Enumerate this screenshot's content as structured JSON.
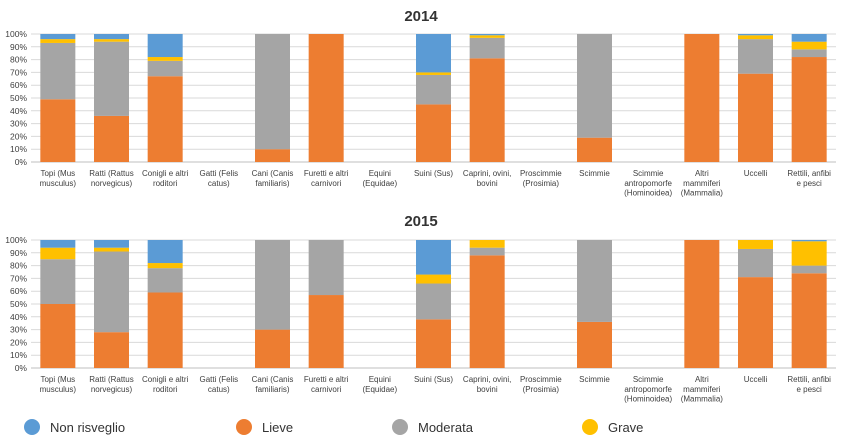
{
  "colors": {
    "non_risveglio": "#5b9bd5",
    "lieve": "#ed7d31",
    "moderata": "#a5a5a5",
    "grave": "#ffc000"
  },
  "legend": [
    {
      "key": "non_risveglio",
      "label": "Non risveglio"
    },
    {
      "key": "lieve",
      "label": "Lieve"
    },
    {
      "key": "moderata",
      "label": "Moderata"
    },
    {
      "key": "grave",
      "label": "Grave"
    }
  ],
  "chart_data": [
    {
      "type": "bar",
      "stacked": "percent",
      "title": "2014",
      "ylim": [
        0,
        100
      ],
      "yticks": [
        "0%",
        "10%",
        "20%",
        "30%",
        "40%",
        "50%",
        "60%",
        "70%",
        "80%",
        "90%",
        "100%"
      ],
      "grid": true,
      "legend_position": "bottom",
      "categories": [
        [
          "Topi (Mus",
          "musculus)"
        ],
        [
          "Ratti (Rattus",
          "norvegicus)"
        ],
        [
          "Conigli e altri",
          "roditori"
        ],
        [
          "Gatti (Felis",
          "catus)"
        ],
        [
          "Cani (Canis",
          "familiaris)"
        ],
        [
          "Furetti e altri",
          "carnivori"
        ],
        [
          "Equini",
          "(Equidae)"
        ],
        [
          "Suini (Sus)"
        ],
        [
          "Caprini, ovini,",
          "bovini"
        ],
        [
          "Proscimmie",
          "(Prosimia)"
        ],
        [
          "Scimmie"
        ],
        [
          "Scimmie",
          "antropomorfe",
          "(Hominoidea)"
        ],
        [
          "Altri",
          "mammiferi",
          "(Mammalia)"
        ],
        [
          "Uccelli"
        ],
        [
          "Rettili, anfibi",
          "e pesci"
        ]
      ],
      "series": [
        {
          "name": "Lieve",
          "key": "lieve",
          "values": [
            49,
            36,
            67,
            0,
            10,
            100,
            0,
            45,
            81,
            0,
            19,
            0,
            100,
            69,
            82
          ]
        },
        {
          "name": "Moderata",
          "key": "moderata",
          "values": [
            44,
            58,
            12,
            0,
            90,
            0,
            0,
            23,
            16,
            0,
            81,
            0,
            0,
            27,
            6
          ]
        },
        {
          "name": "Grave",
          "key": "grave",
          "values": [
            3,
            2,
            3,
            0,
            0,
            0,
            0,
            2,
            2,
            0,
            0,
            0,
            0,
            3,
            6
          ]
        },
        {
          "name": "Non risveglio",
          "key": "non_risveglio",
          "values": [
            4,
            4,
            18,
            0,
            0,
            0,
            0,
            30,
            1,
            0,
            0,
            0,
            0,
            1,
            6
          ]
        }
      ]
    },
    {
      "type": "bar",
      "stacked": "percent",
      "title": "2015",
      "ylim": [
        0,
        100
      ],
      "yticks": [
        "0%",
        "10%",
        "20%",
        "30%",
        "40%",
        "50%",
        "60%",
        "70%",
        "80%",
        "90%",
        "100%"
      ],
      "grid": true,
      "legend_position": "bottom",
      "categories": [
        [
          "Topi (Mus",
          "musculus)"
        ],
        [
          "Ratti (Rattus",
          "norvegicus)"
        ],
        [
          "Conigli e altri",
          "roditori"
        ],
        [
          "Gatti (Felis",
          "catus)"
        ],
        [
          "Cani (Canis",
          "familiaris)"
        ],
        [
          "Furetti e altri",
          "carnivori"
        ],
        [
          "Equini",
          "(Equidae)"
        ],
        [
          "Suini (Sus)"
        ],
        [
          "Caprini, ovini,",
          "bovini"
        ],
        [
          "Proscimmie",
          "(Prosimia)"
        ],
        [
          "Scimmie"
        ],
        [
          "Scimmie",
          "antropomorfe",
          "(Hominoidea)"
        ],
        [
          "Altri",
          "mammiferi",
          "(Mammalia)"
        ],
        [
          "Uccelli"
        ],
        [
          "Rettili, anfibi",
          "e pesci"
        ]
      ],
      "series": [
        {
          "name": "Lieve",
          "key": "lieve",
          "values": [
            50,
            28,
            59,
            0,
            30,
            57,
            0,
            38,
            88,
            0,
            36,
            0,
            100,
            71,
            74
          ]
        },
        {
          "name": "Moderata",
          "key": "moderata",
          "values": [
            35,
            63,
            19,
            0,
            70,
            43,
            0,
            28,
            6,
            0,
            64,
            0,
            0,
            22,
            6
          ]
        },
        {
          "name": "Grave",
          "key": "grave",
          "values": [
            9,
            3,
            4,
            0,
            0,
            0,
            0,
            7,
            6,
            0,
            0,
            0,
            0,
            7,
            19
          ]
        },
        {
          "name": "Non risveglio",
          "key": "non_risveglio",
          "values": [
            6,
            6,
            18,
            0,
            0,
            0,
            0,
            27,
            0,
            0,
            0,
            0,
            0,
            0,
            1
          ]
        }
      ]
    }
  ]
}
